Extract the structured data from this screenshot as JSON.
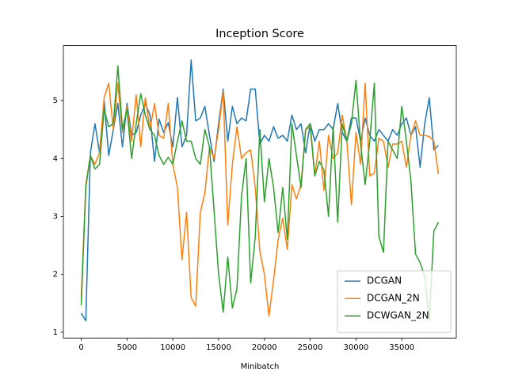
{
  "chart_data": {
    "type": "line",
    "title": "Inception Score",
    "x_label": "Minibatch",
    "x": [
      0,
      500,
      1000,
      1500,
      2000,
      2500,
      3000,
      3500,
      4000,
      4500,
      5000,
      5500,
      6000,
      6500,
      7000,
      7500,
      8000,
      8500,
      9000,
      9500,
      10000,
      10500,
      11000,
      11500,
      12000,
      12500,
      13000,
      13500,
      14000,
      14500,
      15000,
      15500,
      16000,
      16500,
      17000,
      17500,
      18000,
      18500,
      19000,
      19500,
      20000,
      20500,
      21000,
      21500,
      22000,
      22500,
      23000,
      23500,
      24000,
      24500,
      25000,
      25500,
      26000,
      26500,
      27000,
      27500,
      28000,
      28500,
      29000,
      29500,
      30000,
      30500,
      31000,
      31500,
      32000,
      32500,
      33000,
      33500,
      34000,
      34500,
      35000,
      35500,
      36000,
      36500,
      37000,
      37500,
      38000,
      38500,
      39000
    ],
    "series": [
      {
        "name": "DCGAN",
        "color": "#1f77b4",
        "values": [
          1.33,
          1.2,
          4.1,
          4.6,
          4.1,
          5.0,
          4.05,
          4.5,
          4.95,
          4.2,
          4.95,
          4.4,
          4.45,
          4.75,
          4.95,
          4.75,
          3.95,
          4.68,
          4.45,
          4.62,
          4.2,
          5.05,
          4.2,
          4.4,
          5.7,
          4.65,
          4.7,
          4.9,
          4.4,
          3.95,
          4.6,
          5.2,
          4.3,
          4.9,
          4.6,
          4.7,
          4.65,
          5.2,
          5.2,
          4.25,
          4.4,
          4.3,
          4.55,
          4.35,
          4.4,
          4.3,
          4.75,
          4.5,
          4.6,
          4.1,
          4.6,
          4.3,
          4.5,
          4.5,
          4.6,
          4.5,
          4.95,
          4.45,
          4.3,
          4.7,
          4.7,
          4.3,
          4.7,
          4.4,
          4.3,
          4.5,
          4.4,
          4.3,
          4.5,
          4.4,
          4.6,
          4.7,
          4.4,
          4.55,
          3.85,
          4.6,
          5.05,
          4.15,
          4.23
        ]
      },
      {
        "name": "DCGAN_2N",
        "color": "#ff7f0e",
        "values": [
          1.6,
          3.55,
          4.05,
          3.9,
          4.1,
          5.05,
          5.3,
          4.5,
          5.3,
          4.45,
          4.9,
          4.3,
          5.1,
          4.2,
          5.05,
          4.5,
          4.95,
          4.4,
          4.35,
          4.95,
          3.9,
          3.5,
          2.25,
          3.07,
          1.6,
          1.45,
          3.07,
          3.4,
          4.2,
          4.0,
          4.5,
          5.17,
          2.85,
          3.9,
          4.55,
          4.0,
          4.1,
          4.15,
          3.5,
          2.4,
          2.0,
          1.28,
          1.9,
          2.6,
          2.97,
          2.43,
          3.55,
          3.3,
          3.55,
          4.5,
          4.55,
          3.7,
          4.3,
          3.45,
          4.4,
          4.0,
          4.1,
          4.75,
          4.3,
          3.2,
          4.45,
          3.9,
          5.3,
          3.7,
          3.75,
          4.35,
          4.3,
          3.85,
          4.25,
          4.25,
          4.3,
          3.85,
          4.4,
          4.65,
          4.4,
          4.4,
          4.38,
          4.3,
          3.73
        ]
      },
      {
        "name": "DCWGAN_2N",
        "color": "#2ca02c",
        "values": [
          1.47,
          3.5,
          4.05,
          3.82,
          3.9,
          4.85,
          4.55,
          4.6,
          5.6,
          4.5,
          4.85,
          4.0,
          4.6,
          5.12,
          4.75,
          4.5,
          4.4,
          4.05,
          3.9,
          4.02,
          3.9,
          4.3,
          4.65,
          4.3,
          4.3,
          4.0,
          3.9,
          4.5,
          4.2,
          3.1,
          2.0,
          1.35,
          2.3,
          1.42,
          1.75,
          3.35,
          4.0,
          1.85,
          2.65,
          4.5,
          3.25,
          4.0,
          3.5,
          2.72,
          3.5,
          2.6,
          4.6,
          4.05,
          3.5,
          4.5,
          4.6,
          3.7,
          3.95,
          3.8,
          3.0,
          4.55,
          2.9,
          4.6,
          4.3,
          4.6,
          5.35,
          4.25,
          3.55,
          4.3,
          5.3,
          2.65,
          2.38,
          4.3,
          4.15,
          4.0,
          4.9,
          4.3,
          3.6,
          2.35,
          2.2,
          1.97,
          1.2,
          2.75,
          2.9
        ]
      }
    ],
    "xlim": [
      -1950,
      40950
    ],
    "ylim": [
      0.9,
      5.95
    ],
    "xticks": [
      0,
      5000,
      10000,
      15000,
      20000,
      25000,
      30000,
      35000
    ],
    "yticks": [
      1,
      2,
      3,
      4,
      5
    ],
    "legend": "lower right",
    "grid": false
  }
}
